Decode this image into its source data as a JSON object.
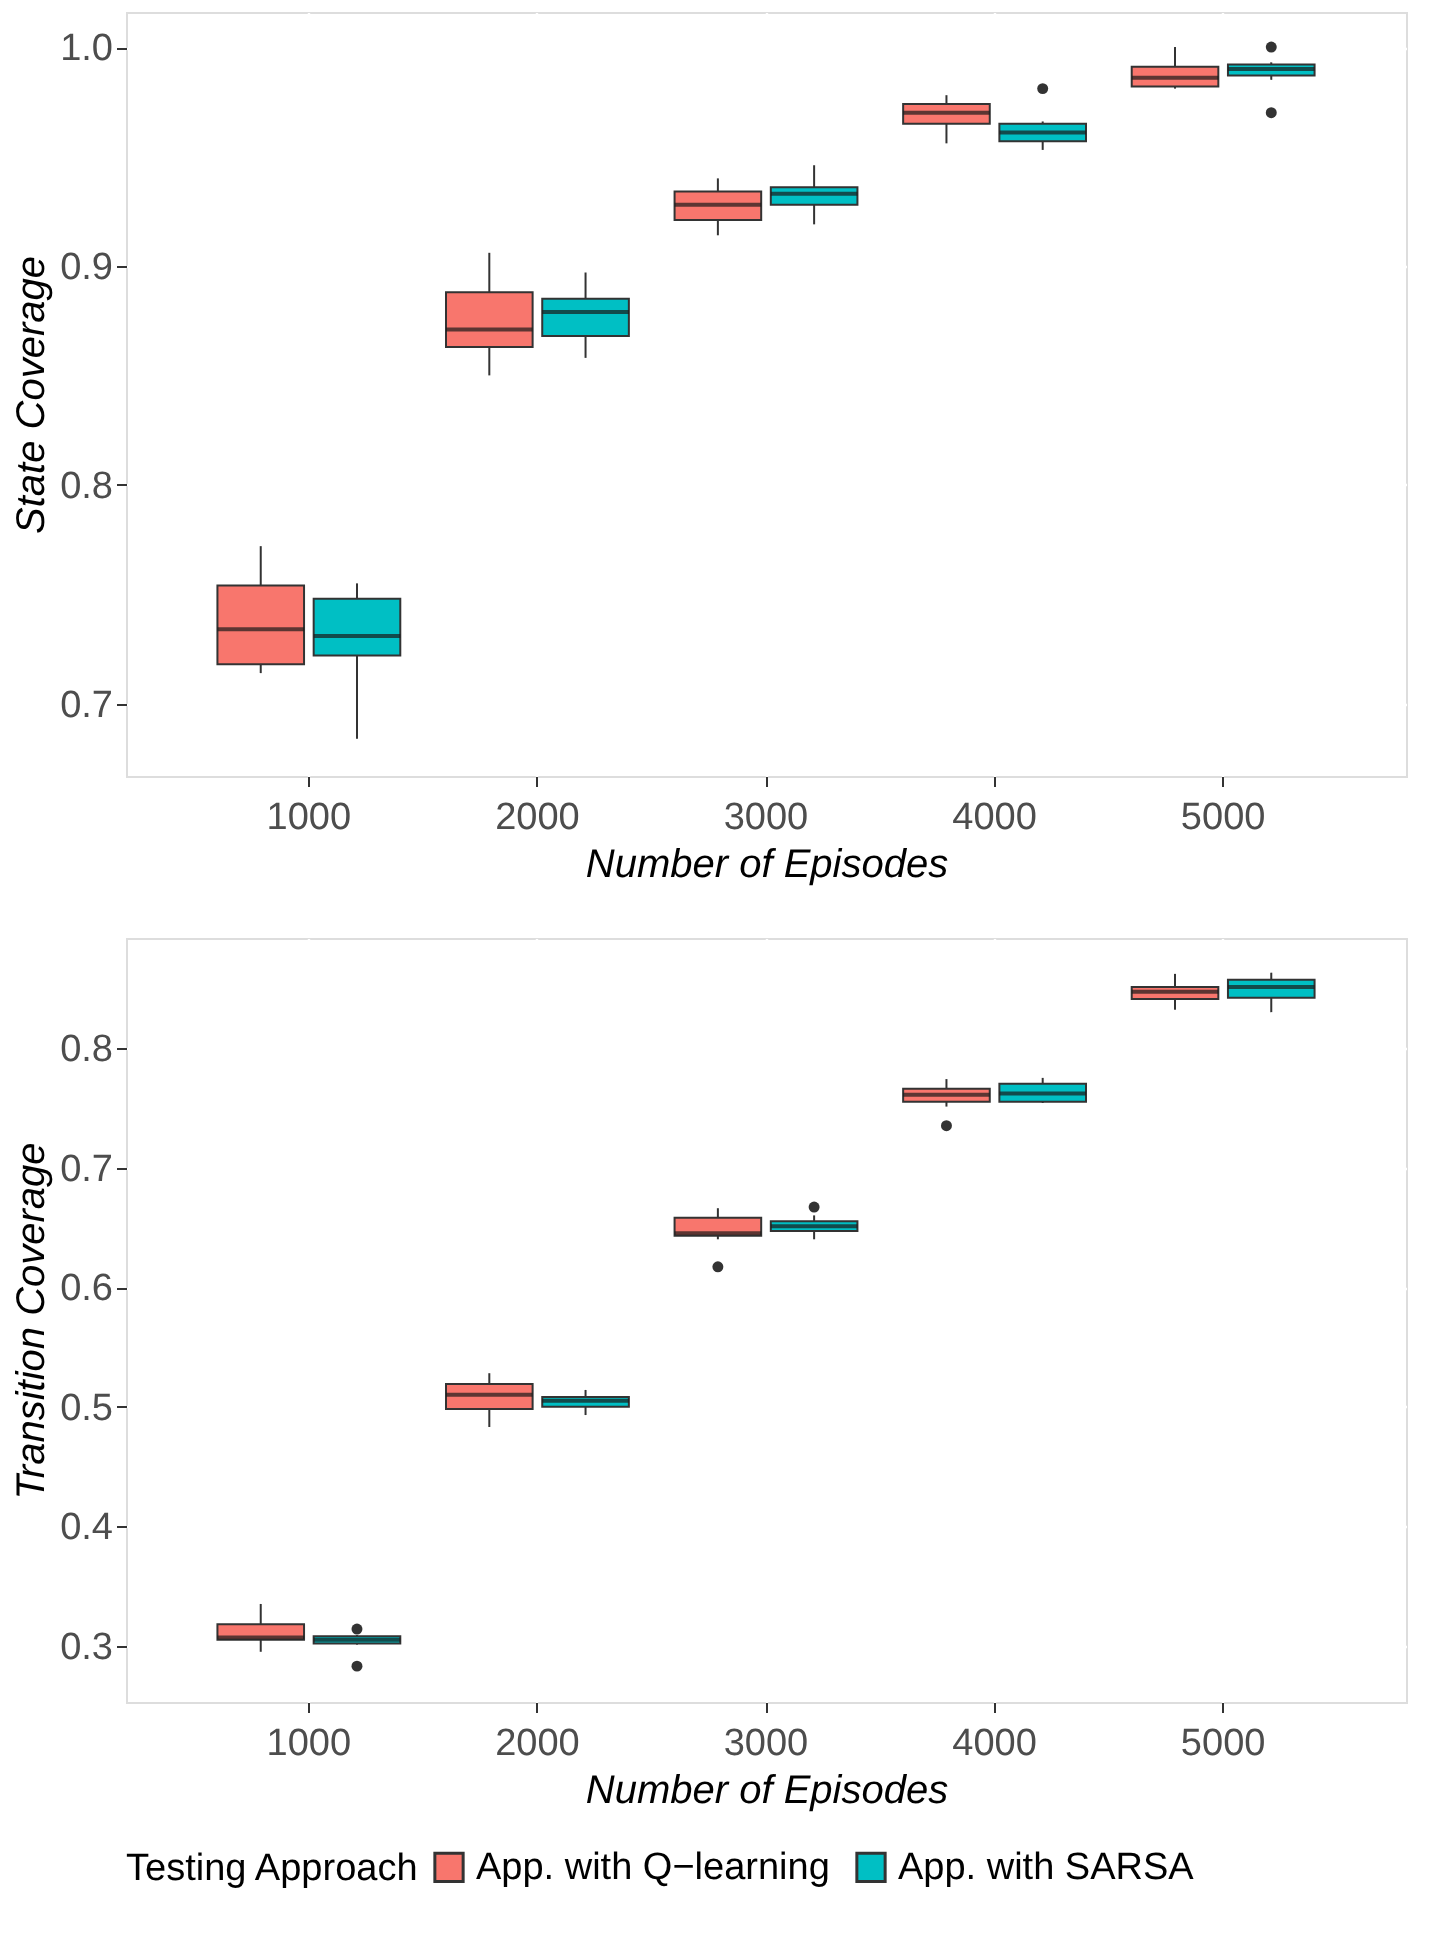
{
  "chart_data": [
    {
      "type": "box",
      "xlabel": "Number of Episodes",
      "ylabel": "State Coverage",
      "categories": [
        "1000",
        "2000",
        "3000",
        "4000",
        "5000"
      ],
      "ylim": [
        0.667,
        1.016
      ],
      "yticks": [
        0.7,
        0.8,
        0.9,
        {
          "value": 1,
          "label": "1.0"
        }
      ],
      "grid": true,
      "legend": "bottom",
      "series": [
        {
          "name": "App. with Q−learning",
          "color": "#f8766d",
          "boxes": [
            {
              "low": 0.714,
              "q1": 0.718,
              "median": 0.734,
              "q3": 0.754,
              "high": 0.772
            },
            {
              "low": 0.85,
              "q1": 0.863,
              "median": 0.871,
              "q3": 0.888,
              "high": 0.906
            },
            {
              "low": 0.914,
              "q1": 0.921,
              "median": 0.928,
              "q3": 0.934,
              "high": 0.94
            },
            {
              "low": 0.956,
              "q1": 0.965,
              "median": 0.97,
              "q3": 0.974,
              "high": 0.978
            },
            {
              "low": 0.981,
              "q1": 0.982,
              "median": 0.986,
              "q3": 0.991,
              "high": 1.0
            }
          ]
        },
        {
          "name": "App. with SARSA",
          "color": "#00bfc4",
          "boxes": [
            {
              "low": 0.684,
              "q1": 0.722,
              "median": 0.731,
              "q3": 0.748,
              "high": 0.755
            },
            {
              "low": 0.858,
              "q1": 0.868,
              "median": 0.879,
              "q3": 0.885,
              "high": 0.897
            },
            {
              "low": 0.919,
              "q1": 0.928,
              "median": 0.933,
              "q3": 0.936,
              "high": 0.946
            },
            {
              "low": 0.953,
              "q1": 0.957,
              "median": 0.961,
              "q3": 0.965,
              "high": 0.966,
              "outliers": [
                0.981
              ]
            },
            {
              "low": 0.985,
              "q1": 0.987,
              "median": 0.99,
              "q3": 0.992,
              "high": 0.993,
              "outliers": [
                1.0,
                0.97
              ]
            }
          ]
        }
      ]
    },
    {
      "type": "box",
      "xlabel": "Number of Episodes",
      "ylabel": "Transition Coverage",
      "categories": [
        "1000",
        "2000",
        "3000",
        "4000",
        "5000"
      ],
      "ylim": [
        0.253,
        0.892
      ],
      "yticks": [
        0.3,
        0.4,
        0.5,
        0.6,
        0.7,
        0.8
      ],
      "grid": true,
      "legend": "bottom",
      "legend_title": "Testing Approach",
      "series": [
        {
          "name": "App. with Q−learning",
          "color": "#f8766d",
          "boxes": [
            {
              "low": 0.295,
              "q1": 0.305,
              "median": 0.307,
              "q3": 0.318,
              "high": 0.335
            },
            {
              "low": 0.483,
              "q1": 0.498,
              "median": 0.51,
              "q3": 0.519,
              "high": 0.528
            },
            {
              "low": 0.64,
              "q1": 0.643,
              "median": 0.645,
              "q3": 0.658,
              "high": 0.666,
              "outliers": [
                0.617
              ]
            },
            {
              "low": 0.751,
              "q1": 0.755,
              "median": 0.761,
              "q3": 0.766,
              "high": 0.774,
              "outliers": [
                0.735
              ]
            },
            {
              "low": 0.832,
              "q1": 0.841,
              "median": 0.847,
              "q3": 0.851,
              "high": 0.862
            }
          ]
        },
        {
          "name": "App. with SARSA",
          "color": "#00bfc4",
          "boxes": [
            {
              "low": 0.301,
              "q1": 0.302,
              "median": 0.305,
              "q3": 0.308,
              "high": 0.309,
              "outliers": [
                0.314,
                0.283
              ]
            },
            {
              "low": 0.493,
              "q1": 0.5,
              "median": 0.505,
              "q3": 0.508,
              "high": 0.514
            },
            {
              "low": 0.64,
              "q1": 0.647,
              "median": 0.651,
              "q3": 0.655,
              "high": 0.66,
              "outliers": [
                0.667
              ]
            },
            {
              "low": 0.754,
              "q1": 0.755,
              "median": 0.762,
              "q3": 0.77,
              "high": 0.775
            },
            {
              "low": 0.83,
              "q1": 0.842,
              "median": 0.851,
              "q3": 0.857,
              "high": 0.863
            }
          ]
        }
      ]
    }
  ]
}
